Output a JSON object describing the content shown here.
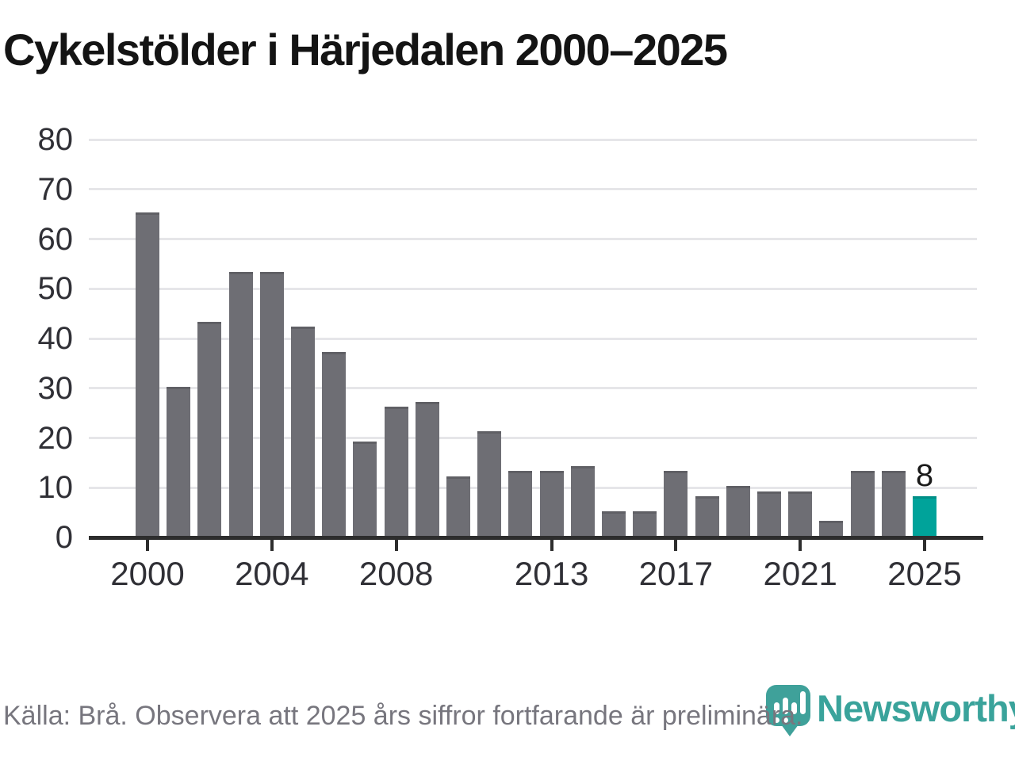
{
  "title": "Cykelstölder i Härjedalen 2000–2025",
  "footer": {
    "source_note": "Källa: Brå. Observera att 2025 års siffror fortfarande är preliminära.",
    "brand": "Newsworthy"
  },
  "colors": {
    "bar_default": "#6e6e74",
    "bar_highlight": "#00a39a",
    "axis": "#2d2d2d",
    "gridline": "#e6e6e9",
    "tick_label": "#303036",
    "title_text": "#141414",
    "footer_text": "#77767e",
    "logo_teal": "#3fa19a"
  },
  "chart_data": {
    "type": "bar",
    "title": "Cykelstölder i Härjedalen 2000–2025",
    "xlabel": "",
    "ylabel": "",
    "ylim": [
      0,
      80
    ],
    "grid": "horizontal",
    "legend": "none",
    "x": [
      2000,
      2001,
      2002,
      2003,
      2004,
      2005,
      2006,
      2007,
      2008,
      2009,
      2010,
      2011,
      2012,
      2013,
      2014,
      2015,
      2016,
      2017,
      2018,
      2019,
      2020,
      2021,
      2022,
      2023,
      2024,
      2025
    ],
    "values": [
      65,
      30,
      43,
      53,
      53,
      42,
      37,
      19,
      26,
      27,
      12,
      21,
      13,
      13,
      14,
      5,
      5,
      13,
      8,
      10,
      9,
      9,
      3,
      13,
      13,
      8
    ],
    "highlight_year": 2025,
    "y_ticks": [
      0,
      10,
      20,
      30,
      40,
      50,
      60,
      70,
      80
    ],
    "x_tick_labels": [
      2000,
      2004,
      2008,
      2013,
      2017,
      2021,
      2025
    ],
    "bar_label": {
      "year": 2025,
      "text": "8"
    }
  }
}
